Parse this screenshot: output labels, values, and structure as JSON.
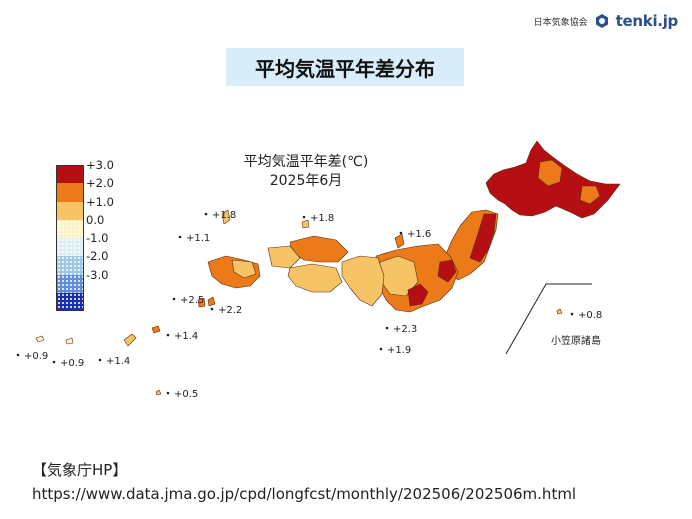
{
  "header": {
    "org_name": "日本気象協会",
    "logo_text": "tenki.jp"
  },
  "banner_title": "平均気温平年差分布",
  "map": {
    "title_line1": "平均気温平年差(℃)",
    "title_line2": "2025年6月",
    "region_label": "小笠原諸島",
    "colors": {
      "over_3": "#b50f14",
      "2_to_3": "#ec7a18",
      "1_to_2": "#f6c465",
      "0_to_1": "#fdf2c4",
      "ocean": "#ffffff"
    },
    "station_values": [
      "+1.8",
      "+1.8",
      "+1.1",
      "+1.6",
      "+2.5",
      "+2.2",
      "+1.4",
      "+2.3",
      "+1.9",
      "+0.9",
      "+0.9",
      "+1.4",
      "+0.5",
      "+0.8"
    ]
  },
  "legend": {
    "ticks": [
      "+3.0",
      "+2.0",
      "+1.0",
      "0.0",
      "-1.0",
      "-2.0",
      "-3.0"
    ],
    "swatch_colors": [
      "#b50f14",
      "#ec7a18",
      "#f6c465",
      "#fdf2c4",
      "#ddeef4",
      "#9dc8ec",
      "#5f8fdc",
      "#1b2fae"
    ]
  },
  "source": {
    "label": "【気象庁HP】",
    "url": "https://www.data.jma.go.jp/cpd/longfcst/monthly/202506/202506m.html"
  }
}
